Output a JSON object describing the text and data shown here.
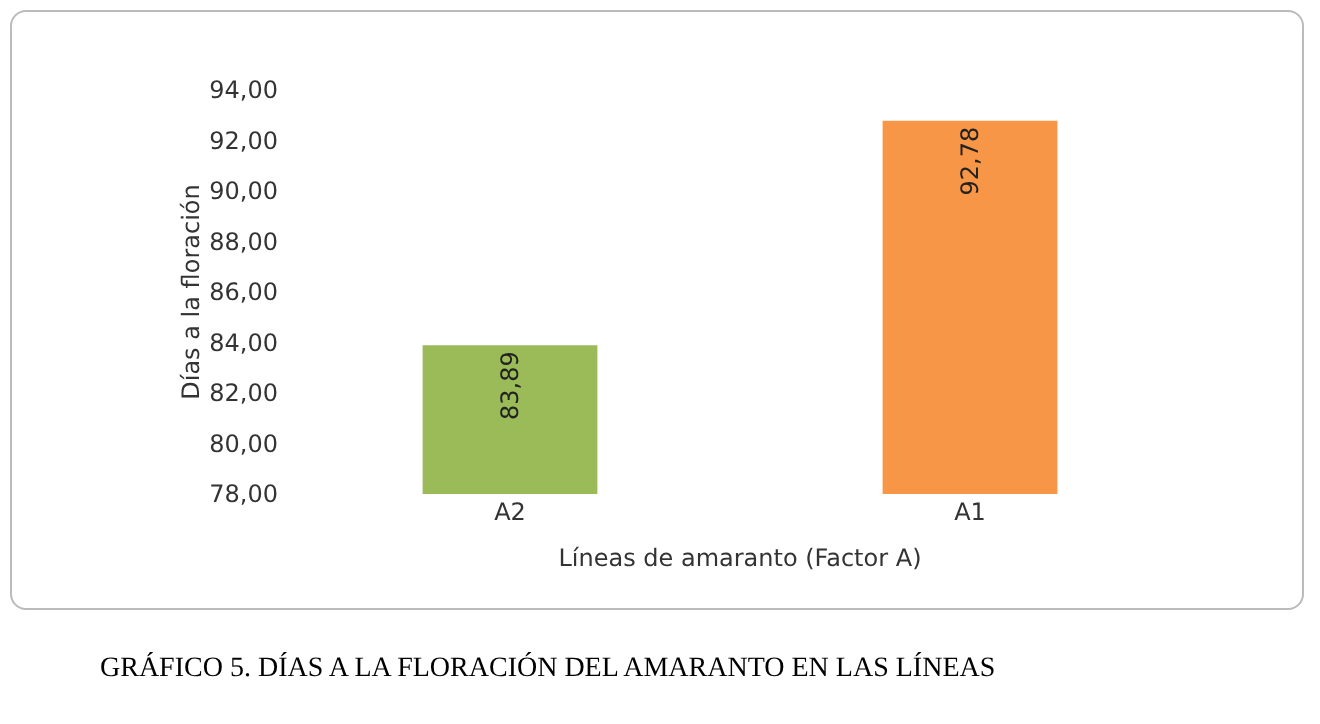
{
  "chart_data": {
    "type": "bar",
    "ylabel": "Días a la floración",
    "xlabel": "Líneas de amaranto (Factor A)",
    "categories": [
      "A2",
      "A1"
    ],
    "values": [
      83.89,
      92.78
    ],
    "colors": [
      "#9bbb59",
      "#f79646"
    ],
    "value_labels": [
      "83,89",
      "92,78"
    ],
    "ylim": [
      78,
      94
    ],
    "yticks": [
      {
        "value": 78,
        "label": "78,00"
      },
      {
        "value": 80,
        "label": "80,00"
      },
      {
        "value": 82,
        "label": "82,00"
      },
      {
        "value": 84,
        "label": "84,00"
      },
      {
        "value": 86,
        "label": "86,00"
      },
      {
        "value": 88,
        "label": "88,00"
      },
      {
        "value": 90,
        "label": "90,00"
      },
      {
        "value": 92,
        "label": "92,00"
      },
      {
        "value": 94,
        "label": "94,00"
      }
    ],
    "annotations": [
      "GRÁFICO 5. DÍAS A LA FLORACIÓN DEL AMARANTO EN LAS LÍNEAS"
    ]
  }
}
